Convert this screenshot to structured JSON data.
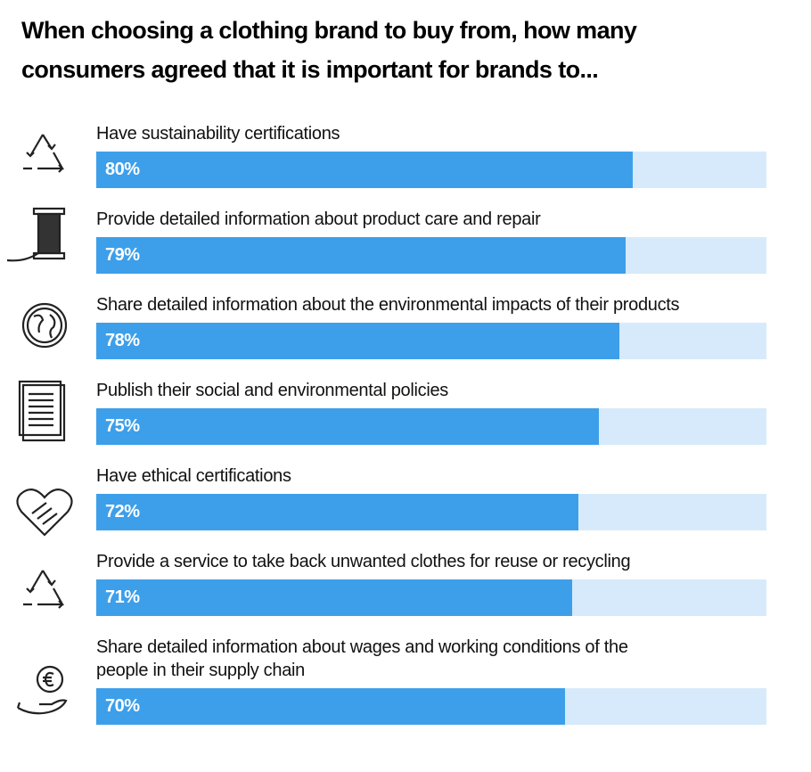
{
  "chart_data": {
    "type": "bar",
    "title": "When choosing a clothing brand to buy from, how many consumers agreed that it is important for brands to...",
    "categories": [
      "Have sustainability certifications",
      "Provide detailed information about product care and repair",
      "Share detailed information about the environmental impacts of their products",
      "Publish their social and environmental policies",
      "Have ethical certifications",
      "Provide a service to take back unwanted clothes for reuse or recycling",
      "Share detailed information about wages and working conditions of the\npeople in their supply chain"
    ],
    "values": [
      80,
      79,
      78,
      75,
      72,
      71,
      70
    ],
    "value_labels": [
      "80%",
      "79%",
      "78%",
      "75%",
      "72%",
      "71%",
      "70%"
    ],
    "xlim": [
      0,
      100
    ],
    "color": "#3d9fea",
    "track_color": "#d7eafb"
  }
}
